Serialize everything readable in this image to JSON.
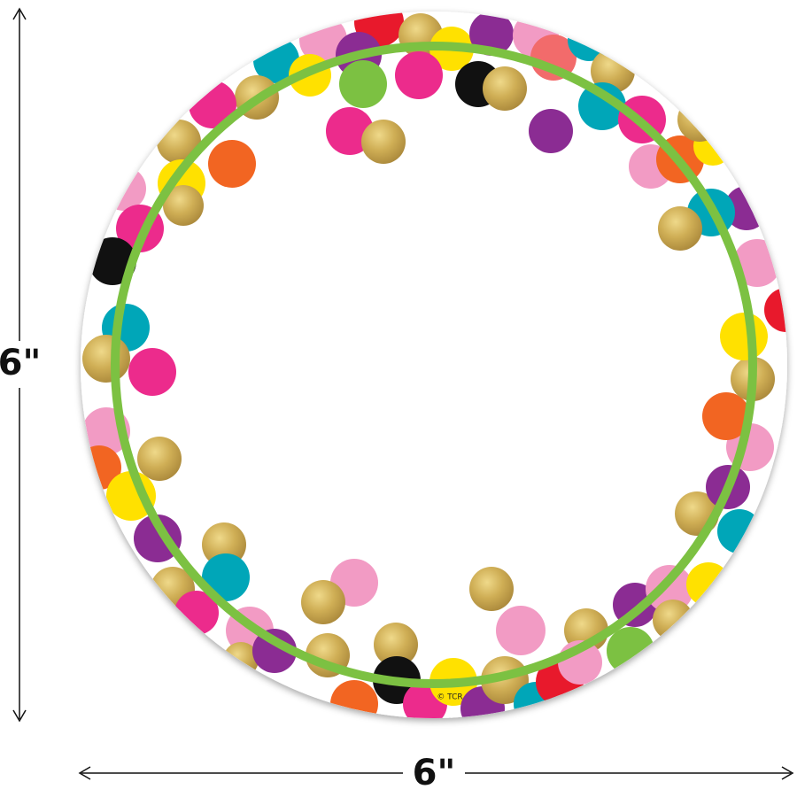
{
  "dimensions": {
    "height": "6\"",
    "width": "6\""
  },
  "copyright": "© TCR"
}
